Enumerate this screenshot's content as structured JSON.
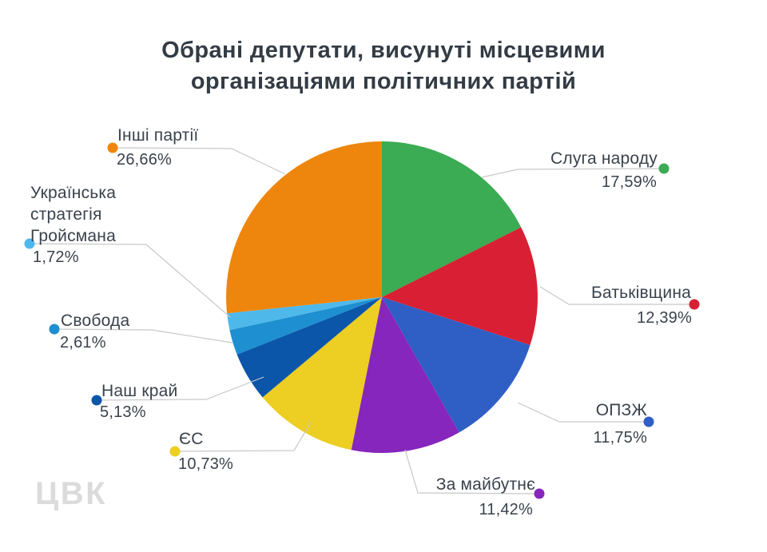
{
  "title": {
    "line1": "Обрані депутати, висунуті місцевими",
    "line2": "організаціями політичних партій"
  },
  "watermark": "ЦВК",
  "colors": {
    "background": "#FFFFFF",
    "title_text": "#333B44",
    "label_text": "#3A424C",
    "leader_line": "#C8C8C8",
    "watermark_text": "#DBDBDB"
  },
  "chart_data": {
    "type": "pie",
    "title": "Обрані депутати, висунуті місцевими організаціями політичних партій",
    "unit": "%",
    "decimal_separator": ",",
    "start_angle_deg": 0,
    "direction": "clockwise",
    "legend_position": "callout-labels",
    "slices": [
      {
        "id": "sluha-narodu",
        "name": "Слуга народу",
        "value": 17.59,
        "value_label": "17,59%",
        "color": "#3BAC54"
      },
      {
        "id": "batkivshchyna",
        "name": "Батьківщина",
        "value": 12.39,
        "value_label": "12,39%",
        "color": "#D91F33"
      },
      {
        "id": "opzzh",
        "name": "ОПЗЖ",
        "value": 11.75,
        "value_label": "11,75%",
        "color": "#2F5FC4"
      },
      {
        "id": "za-maibutnie",
        "name": "За майбутнє",
        "value": 11.42,
        "value_label": "11,42%",
        "color": "#8626BC"
      },
      {
        "id": "yes",
        "name": "ЄС",
        "value": 10.73,
        "value_label": "10,73%",
        "color": "#EDCE22"
      },
      {
        "id": "nash-krai",
        "name": "Наш край",
        "value": 5.13,
        "value_label": "5,13%",
        "color": "#0B56A8"
      },
      {
        "id": "svoboda",
        "name": "Свобода",
        "value": 2.61,
        "value_label": "2,61%",
        "color": "#1E8FD0"
      },
      {
        "id": "ukrainska-stratehiia-hroismana",
        "name": "Українська стратегія Гройсмана",
        "value": 1.72,
        "value_label": "1,72%",
        "color": "#4FB8EA"
      },
      {
        "id": "inshi-partii",
        "name": "Інші партії",
        "value": 26.66,
        "value_label": "26,66%",
        "color": "#EE860D"
      }
    ]
  }
}
